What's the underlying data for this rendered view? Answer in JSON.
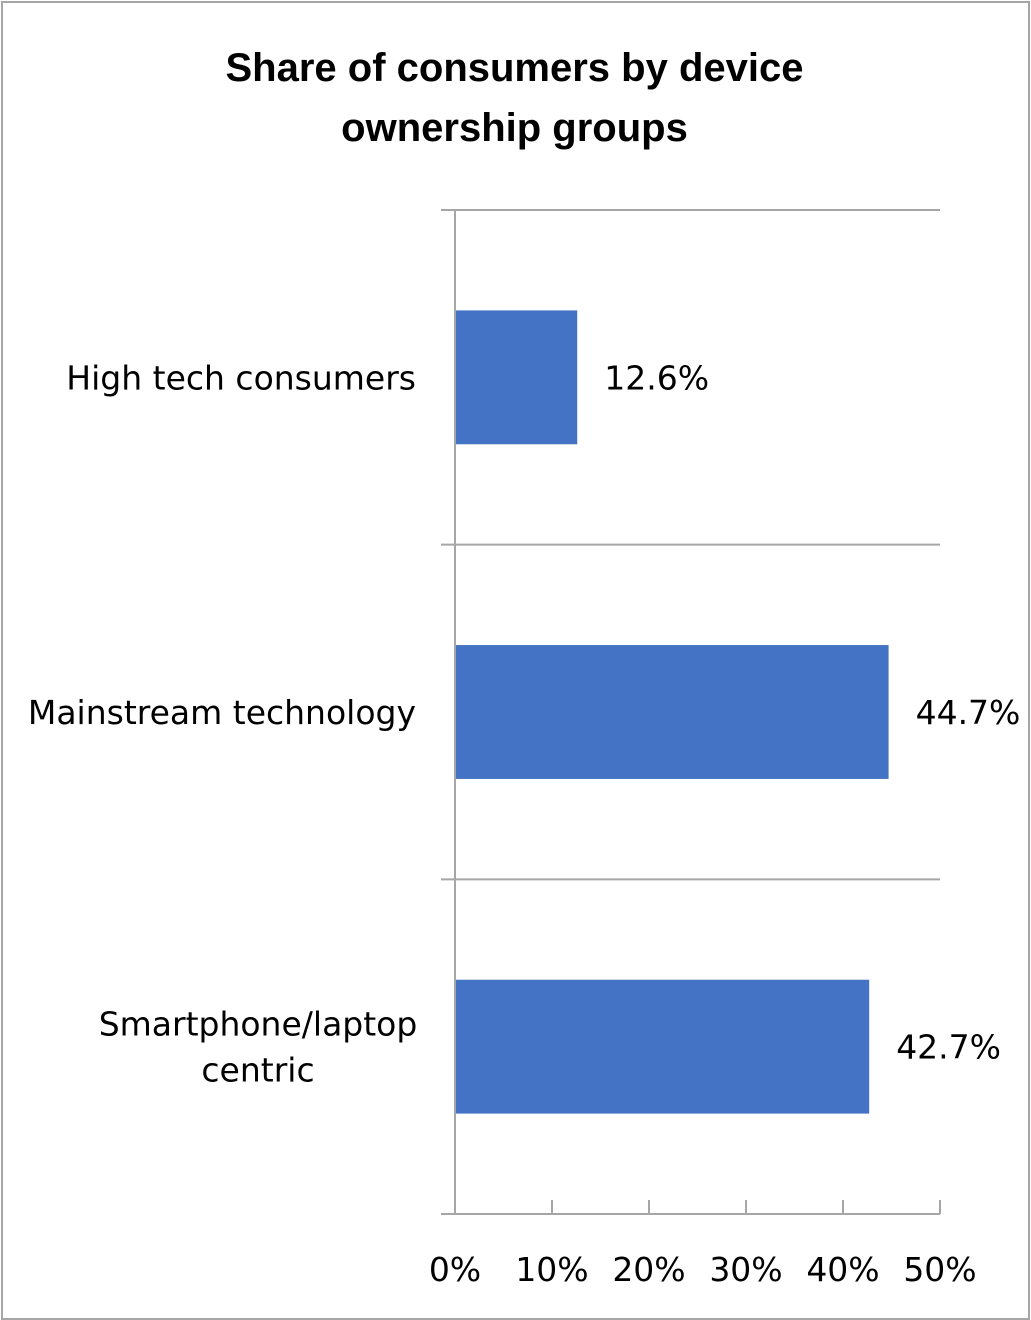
{
  "chart_data": {
    "type": "bar",
    "orientation": "horizontal",
    "title_lines": [
      "Share of consumers by device",
      "ownership groups"
    ],
    "categories": [
      {
        "lines": [
          "High tech consumers"
        ]
      },
      {
        "lines": [
          "Mainstream technology"
        ]
      },
      {
        "lines": [
          "Smartphone/laptop",
          "centric"
        ]
      }
    ],
    "values": [
      12.6,
      44.7,
      42.7
    ],
    "value_labels": [
      "12.6%",
      "44.7%",
      "42.7%"
    ],
    "xlim": [
      0,
      50
    ],
    "x_ticks": [
      0,
      10,
      20,
      30,
      40,
      50
    ],
    "x_tick_labels": [
      "0%",
      "10%",
      "20%",
      "30%",
      "40%",
      "50%"
    ],
    "xlabel": "",
    "ylabel": "",
    "bar_color": "#4472c4",
    "axis_color": "#a6a6a6",
    "legend": "none"
  }
}
